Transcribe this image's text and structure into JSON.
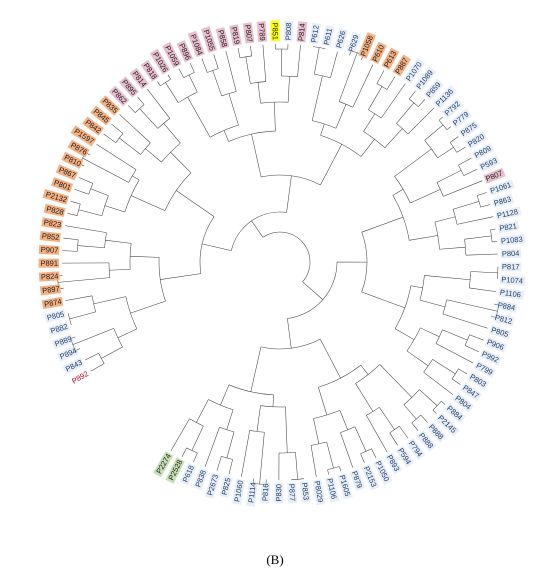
{
  "figure": {
    "panel_label": "(B)",
    "tip_order": [
      "P892",
      "P843",
      "P894",
      "P889",
      "P882",
      "P805",
      "P874",
      "P897",
      "P824",
      "P891",
      "P907",
      "P852",
      "P823",
      "P828",
      "P2132",
      "P801",
      "P867",
      "P810",
      "P876",
      "P1597",
      "P842",
      "P845",
      "P835",
      "P862",
      "P895",
      "P814",
      "P818",
      "P1026",
      "P1059",
      "P896",
      "P1084",
      "P1055",
      "P858",
      "P819",
      "P807",
      "P789",
      "P851",
      "P808",
      "P814",
      "P612",
      "P611",
      "P626",
      "P629",
      "P1058",
      "P610",
      "P613",
      "P887",
      "P1070",
      "P1089",
      "P859",
      "P1136",
      "P792",
      "P779",
      "P875",
      "P820",
      "P809",
      "P593",
      "P807",
      "P1061",
      "P863",
      "P1128",
      "P821",
      "P1083",
      "P804",
      "P817",
      "P1074",
      "P1106",
      "P884",
      "P812",
      "P805",
      "P906",
      "P992",
      "P799",
      "P803",
      "P847",
      "P804",
      "P884",
      "P2145",
      "P888",
      "P888",
      "P794",
      "P594",
      "P893",
      "P1050",
      "P2153",
      "P879",
      "P1605",
      "P1106",
      "P8029",
      "P853",
      "P877",
      "P830",
      "P816",
      "P1114",
      "P1060",
      "P825",
      "P2673",
      "P838",
      "P618",
      "P2528",
      "P2274"
    ],
    "group_colors": {
      "orange": "#f4b183",
      "pink": "#e9bfcf",
      "blue": "#c9daf0",
      "green": "#c6e0b4",
      "yellow": "#ffff00",
      "red_text": "#b00020"
    },
    "clade_groups": {
      "orange": [
        "P874",
        "P897",
        "P824",
        "P891",
        "P907",
        "P852",
        "P823",
        "P828",
        "P2132",
        "P801",
        "P867",
        "P810",
        "P876",
        "P1597",
        "P842",
        "P845",
        "P835",
        "P1058",
        "P610",
        "P613",
        "P887"
      ],
      "pink": [
        "P862",
        "P895",
        "P814",
        "P818",
        "P1026",
        "P1059",
        "P896",
        "P1084",
        "P1055",
        "P858",
        "P819",
        "P807",
        "P789"
      ],
      "yellow": [
        "P851"
      ],
      "green": [
        "P2528",
        "P2274"
      ],
      "red_text": [
        "P892"
      ]
    }
  }
}
